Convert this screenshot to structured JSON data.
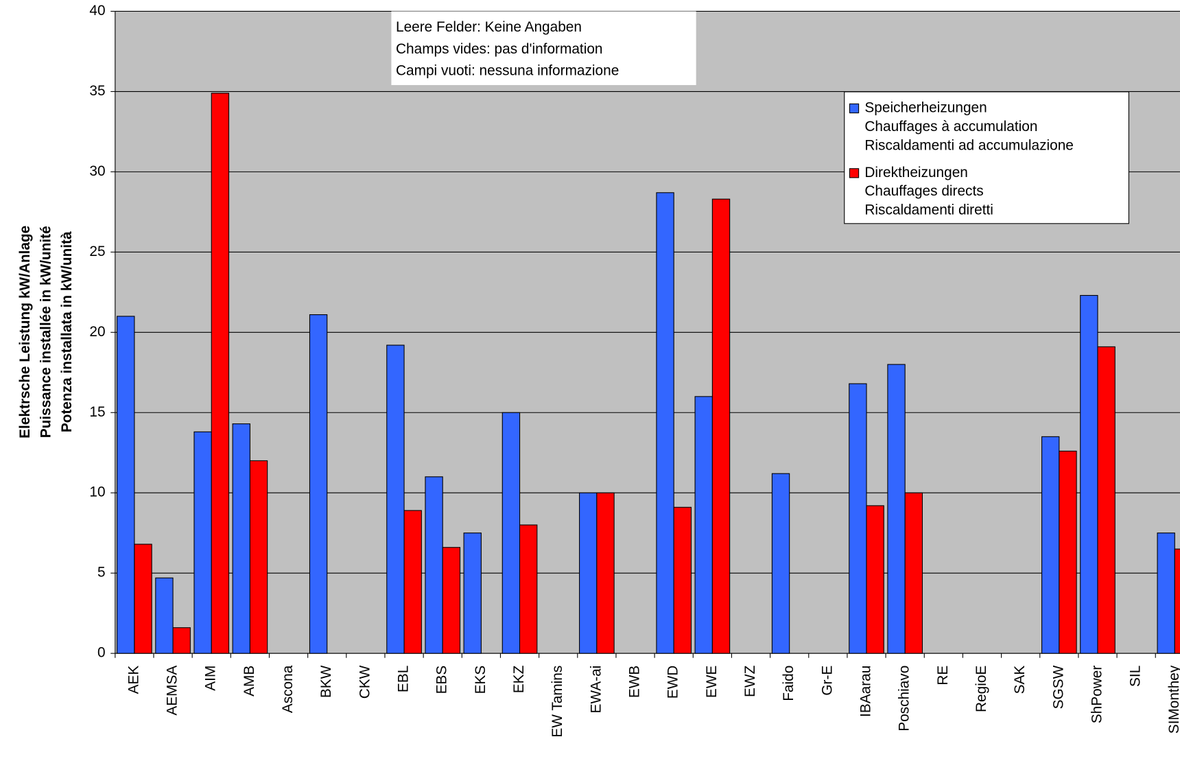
{
  "chart_data": {
    "type": "bar",
    "ylabel": [
      "Elektrsche Leistung kW/Anlage",
      "Puissance installée in kW/unité",
      "Potenza installata in kW/unità"
    ],
    "annotation": [
      "Leere Felder: Keine Angaben",
      "Champs vides: pas d'information",
      "Campi vuoti: nessuna informazione"
    ],
    "categories": [
      "AEK",
      "AEMSA",
      "AIM",
      "AMB",
      "Ascona",
      "BKW",
      "CKW",
      "EBL",
      "EBS",
      "EKS",
      "EKZ",
      "EW Tamins",
      "EWA-ai",
      "EWB",
      "EWD",
      "EWE",
      "EWZ",
      "Faido",
      "Gr-E",
      "IBAarau",
      "Poschiavo",
      "RE",
      "RegioE",
      "SAK",
      "SGSW",
      "ShPower",
      "SIL",
      "SIMonthey"
    ],
    "series": [
      {
        "name": "Speicherheizungen",
        "translations": [
          "Chauffages à accumulation",
          "Riscaldamenti ad accumulazione"
        ],
        "color": "#3366ff",
        "values": [
          21,
          4.7,
          13.8,
          14.3,
          null,
          21.1,
          null,
          19.2,
          11,
          7.5,
          15,
          null,
          10,
          null,
          28.7,
          16,
          null,
          11.2,
          null,
          16.8,
          18,
          null,
          null,
          null,
          13.5,
          22.3,
          null,
          7.5
        ]
      },
      {
        "name": "Direktheizungen",
        "translations": [
          "Chauffages directs",
          "Riscaldamenti diretti"
        ],
        "color": "#ff0000",
        "values": [
          6.8,
          1.6,
          34.9,
          12,
          null,
          null,
          null,
          8.9,
          6.6,
          null,
          8,
          null,
          10,
          null,
          9.1,
          28.3,
          null,
          null,
          null,
          9.2,
          10,
          null,
          null,
          null,
          12.6,
          19.1,
          null,
          6.5
        ]
      }
    ],
    "ylim": [
      0,
      40
    ],
    "yticks": [
      0,
      5,
      10,
      15,
      20,
      25,
      30,
      35,
      40
    ],
    "grid": true
  }
}
